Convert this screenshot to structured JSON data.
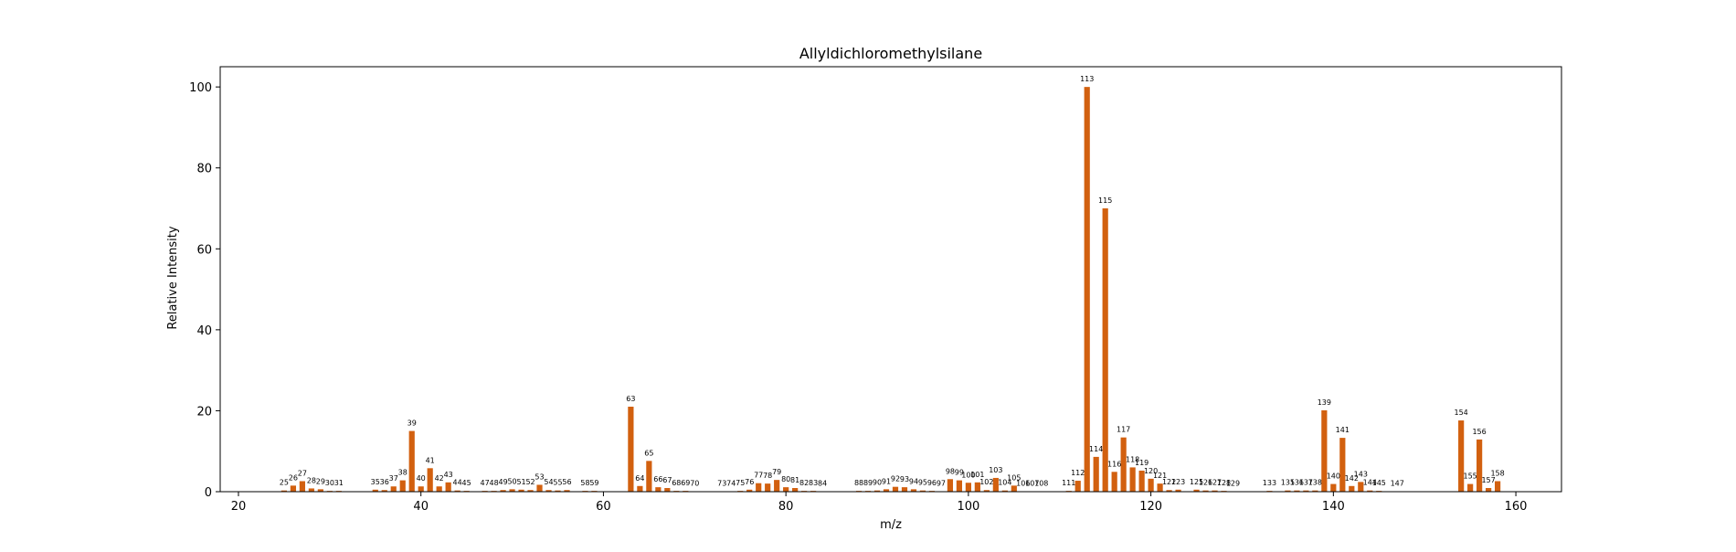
{
  "chart_data": {
    "type": "bar",
    "title": "Allyldichloromethylsilane",
    "xlabel": "m/z",
    "ylabel": "Relative Intensity",
    "xlim": [
      18,
      165
    ],
    "ylim": [
      0,
      105
    ],
    "xticks": [
      20,
      40,
      60,
      80,
      100,
      120,
      140,
      160
    ],
    "yticks": [
      0,
      20,
      40,
      60,
      80,
      100
    ],
    "grid": false,
    "bar_color": "#d2600f",
    "x": [
      25,
      26,
      27,
      28,
      29,
      30,
      31,
      35,
      36,
      37,
      38,
      39,
      40,
      41,
      42,
      43,
      44,
      45,
      47,
      48,
      49,
      50,
      51,
      52,
      53,
      54,
      55,
      56,
      58,
      59,
      63,
      64,
      65,
      66,
      67,
      68,
      69,
      70,
      73,
      74,
      75,
      76,
      77,
      78,
      79,
      80,
      81,
      82,
      83,
      84,
      88,
      89,
      90,
      91,
      92,
      93,
      94,
      95,
      96,
      97,
      98,
      99,
      100,
      101,
      102,
      103,
      104,
      105,
      106,
      107,
      108,
      111,
      112,
      113,
      114,
      115,
      116,
      117,
      118,
      119,
      120,
      121,
      122,
      123,
      125,
      126,
      127,
      128,
      129,
      133,
      135,
      136,
      137,
      138,
      139,
      140,
      141,
      142,
      143,
      144,
      145,
      147,
      154,
      155,
      156,
      157,
      158
    ],
    "values": [
      0.3,
      1.5,
      2.6,
      0.8,
      0.6,
      0.2,
      0.2,
      0.5,
      0.4,
      1.3,
      2.8,
      15.0,
      1.3,
      5.8,
      1.3,
      2.3,
      0.3,
      0.2,
      0.2,
      0.2,
      0.4,
      0.6,
      0.5,
      0.4,
      1.7,
      0.4,
      0.3,
      0.4,
      0.2,
      0.2,
      21.0,
      1.4,
      7.6,
      1.1,
      0.9,
      0.2,
      0.2,
      0.1,
      0.1,
      0.1,
      0.2,
      0.5,
      2.1,
      2.0,
      2.9,
      1.1,
      0.9,
      0.2,
      0.2,
      0.1,
      0.2,
      0.2,
      0.3,
      0.6,
      1.2,
      1.1,
      0.6,
      0.3,
      0.2,
      0.1,
      3.1,
      2.8,
      2.2,
      2.3,
      0.4,
      3.4,
      0.3,
      1.5,
      0.1,
      0.1,
      0.1,
      0.2,
      2.7,
      100.0,
      8.6,
      70.0,
      4.9,
      13.4,
      6.0,
      5.2,
      3.2,
      2.0,
      0.4,
      0.5,
      0.5,
      0.3,
      0.3,
      0.2,
      0.1,
      0.2,
      0.3,
      0.3,
      0.3,
      0.3,
      20.1,
      1.9,
      13.3,
      1.4,
      2.4,
      0.3,
      0.2,
      0.1,
      17.6,
      1.9,
      12.9,
      0.9,
      2.6
    ],
    "labels": [
      "25",
      "26",
      "27",
      "28",
      "29",
      "30",
      "31",
      "35",
      "36",
      "37",
      "38",
      "39",
      "40",
      "41",
      "42",
      "43",
      "44",
      "45",
      "47",
      "48",
      "49",
      "50",
      "51",
      "52",
      "53",
      "54",
      "55",
      "56",
      "58",
      "59",
      "63",
      "64",
      "65",
      "66",
      "67",
      "68",
      "69",
      "70",
      "73",
      "74",
      "75",
      "76",
      "77",
      "78",
      "79",
      "80",
      "81",
      "82",
      "83",
      "84",
      "88",
      "89",
      "90",
      "91",
      "92",
      "93",
      "94",
      "95",
      "96",
      "97",
      "98",
      "99",
      "100",
      "101",
      "102",
      "103",
      "104",
      "105",
      "106",
      "107",
      "108",
      "111",
      "112",
      "113",
      "114",
      "115",
      "116",
      "117",
      "118",
      "119",
      "120",
      "121",
      "122",
      "123",
      "125",
      "126",
      "127",
      "128",
      "129",
      "133",
      "135",
      "136",
      "137",
      "138",
      "139",
      "140",
      "141",
      "142",
      "143",
      "144",
      "145",
      "147",
      "154",
      "155",
      "156",
      "157",
      "158"
    ]
  }
}
